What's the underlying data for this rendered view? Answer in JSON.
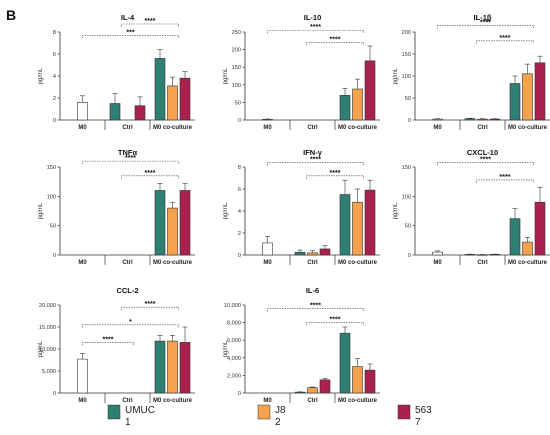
{
  "figure": {
    "letter": "B"
  },
  "colors": {
    "UMUC1": "#2e8073",
    "J82": "#f4a24d",
    "5637": "#a8224d",
    "bar_stroke": "#333333"
  },
  "legend": [
    {
      "line1": "UMUC",
      "line2": "1",
      "color": "#2e8073"
    },
    {
      "line1": "J8",
      "line2": "2",
      "color": "#f4a24d"
    },
    {
      "line1": "563",
      "line2": "7",
      "color": "#a8224d"
    }
  ],
  "chart_data": [
    {
      "type": "bar",
      "title": "IL-4",
      "ylabel": "pg/mL",
      "ylim": [
        0,
        8
      ],
      "yticks": [
        "0",
        "2",
        "4",
        "6",
        "8"
      ],
      "groups": [
        "M0",
        "Ctrl",
        "M0 co-culture"
      ],
      "bars": [
        {
          "group": 0,
          "series": "M0",
          "value": 1.6,
          "err": 0.6,
          "fill": "#ffffff"
        },
        {
          "group": 1,
          "series": "UMUC1",
          "value": 1.5,
          "err": 0.9
        },
        {
          "group": 1,
          "series": "5637",
          "value": 1.3,
          "err": 0.8
        },
        {
          "group": 2,
          "series": "UMUC1",
          "value": 5.6,
          "err": 0.8
        },
        {
          "group": 2,
          "series": "J82",
          "value": 3.1,
          "err": 0.8
        },
        {
          "group": 2,
          "series": "5637",
          "value": 3.8,
          "err": 0.6
        }
      ],
      "brackets": [
        {
          "from": 0,
          "to": 2,
          "y": 7.7,
          "label": "***"
        },
        {
          "from": 1,
          "to": 2,
          "y": 9.3,
          "label": "****"
        }
      ]
    },
    {
      "type": "bar",
      "title": "IL-10",
      "ylabel": "pg/mL",
      "ylim": [
        0,
        250
      ],
      "yticks": [
        "0",
        "50",
        "100",
        "150",
        "200",
        "250"
      ],
      "groups": [
        "M0",
        "Ctrl",
        "M0 co-culture"
      ],
      "bars": [
        {
          "group": 0,
          "series": "M0",
          "value": 2,
          "err": 1,
          "fill": "#ffffff"
        },
        {
          "group": 2,
          "series": "UMUC1",
          "value": 70,
          "err": 20
        },
        {
          "group": 2,
          "series": "J82",
          "value": 88,
          "err": 28
        },
        {
          "group": 2,
          "series": "5637",
          "value": 168,
          "err": 42
        }
      ],
      "brackets": [
        {
          "from": 0,
          "to": 2,
          "y": 255,
          "label": "****"
        },
        {
          "from": 1,
          "to": 2,
          "y": 220,
          "label": "****"
        }
      ]
    },
    {
      "type": "bar",
      "title": "IL-1β",
      "ylabel": "pg/mL",
      "ylim": [
        0,
        200
      ],
      "yticks": [
        "0",
        "50",
        "100",
        "150",
        "200"
      ],
      "groups": [
        "M0",
        "Ctrl",
        "M0 co-culture"
      ],
      "bars": [
        {
          "group": 0,
          "series": "M0",
          "value": 2,
          "err": 1,
          "fill": "#ffffff"
        },
        {
          "group": 1,
          "series": "UMUC1",
          "value": 3,
          "err": 1
        },
        {
          "group": 1,
          "series": "J82",
          "value": 2,
          "err": 1
        },
        {
          "group": 1,
          "series": "5637",
          "value": 2,
          "err": 1
        },
        {
          "group": 2,
          "series": "UMUC1",
          "value": 83,
          "err": 17
        },
        {
          "group": 2,
          "series": "J82",
          "value": 105,
          "err": 22
        },
        {
          "group": 2,
          "series": "5637",
          "value": 130,
          "err": 15
        }
      ],
      "brackets": [
        {
          "from": 0,
          "to": 2,
          "y": 215,
          "label": "****"
        },
        {
          "from": 1,
          "to": 2,
          "y": 180,
          "label": "****"
        }
      ]
    },
    {
      "type": "bar",
      "title": "TNFα",
      "ylabel": "pg/mL",
      "ylim": [
        0,
        150
      ],
      "yticks": [
        "0",
        "50",
        "100",
        "150"
      ],
      "groups": [
        "M0",
        "Ctrl",
        "M0 co-culture"
      ],
      "bars": [
        {
          "group": 2,
          "series": "UMUC1",
          "value": 110,
          "err": 12
        },
        {
          "group": 2,
          "series": "J82",
          "value": 80,
          "err": 10
        },
        {
          "group": 2,
          "series": "5637",
          "value": 110,
          "err": 12
        }
      ],
      "brackets": [
        {
          "from": 0,
          "to": 2,
          "y": 160,
          "label": "****"
        },
        {
          "from": 1,
          "to": 2,
          "y": 135,
          "label": "****"
        }
      ]
    },
    {
      "type": "bar",
      "title": "IFN-γ",
      "ylabel": "pg/mL",
      "ylim": [
        0,
        8
      ],
      "yticks": [
        "0",
        "2",
        "4",
        "6",
        "8"
      ],
      "groups": [
        "M0",
        "Ctrl",
        "M0 co-culture"
      ],
      "bars": [
        {
          "group": 0,
          "series": "M0",
          "value": 1.1,
          "err": 0.6,
          "fill": "#ffffff"
        },
        {
          "group": 1,
          "series": "UMUC1",
          "value": 0.25,
          "err": 0.2
        },
        {
          "group": 1,
          "series": "J82",
          "value": 0.2,
          "err": 0.2
        },
        {
          "group": 1,
          "series": "5637",
          "value": 0.55,
          "err": 0.3
        },
        {
          "group": 2,
          "series": "UMUC1",
          "value": 5.5,
          "err": 1.3
        },
        {
          "group": 2,
          "series": "J82",
          "value": 4.8,
          "err": 1.2
        },
        {
          "group": 2,
          "series": "5637",
          "value": 5.9,
          "err": 0.9
        }
      ],
      "brackets": [
        {
          "from": 0,
          "to": 2,
          "y": 8.4,
          "label": "****"
        },
        {
          "from": 1,
          "to": 2,
          "y": 7.2,
          "label": "****"
        }
      ]
    },
    {
      "type": "bar",
      "title": "CXCL-10",
      "ylabel": "pg/mL",
      "ylim": [
        0,
        150
      ],
      "yticks": [
        "0",
        "50",
        "100",
        "150"
      ],
      "groups": [
        "M0",
        "Ctrl",
        "M0 co-culture"
      ],
      "bars": [
        {
          "group": 0,
          "series": "M0",
          "value": 5,
          "err": 2,
          "fill": "#ffffff"
        },
        {
          "group": 1,
          "series": "UMUC1",
          "value": 1,
          "err": 0.5
        },
        {
          "group": 1,
          "series": "J82",
          "value": 0.5,
          "err": 0.3
        },
        {
          "group": 1,
          "series": "5637",
          "value": 1,
          "err": 0.5
        },
        {
          "group": 2,
          "series": "UMUC1",
          "value": 62,
          "err": 17
        },
        {
          "group": 2,
          "series": "J82",
          "value": 22,
          "err": 8
        },
        {
          "group": 2,
          "series": "5637",
          "value": 90,
          "err": 25
        }
      ],
      "brackets": [
        {
          "from": 0,
          "to": 2,
          "y": 158,
          "label": "****"
        },
        {
          "from": 1,
          "to": 2,
          "y": 128,
          "label": "****"
        }
      ]
    },
    {
      "type": "bar",
      "title": "CCL-2",
      "ylabel": "pg/mL",
      "ylim": [
        0,
        20000
      ],
      "yticks": [
        "0",
        "5,000",
        "10,000",
        "15,000",
        "20,000"
      ],
      "groups": [
        "M0",
        "Ctrl",
        "M0 co-culture"
      ],
      "bars": [
        {
          "group": 0,
          "series": "M0",
          "value": 7700,
          "err": 1300,
          "fill": "#ffffff"
        },
        {
          "group": 2,
          "series": "UMUC1",
          "value": 11800,
          "err": 1300
        },
        {
          "group": 2,
          "series": "J82",
          "value": 11800,
          "err": 1300
        },
        {
          "group": 2,
          "series": "5637",
          "value": 11500,
          "err": 3500
        }
      ],
      "brackets": [
        {
          "from": 0,
          "to": 2,
          "y": 15500,
          "label": "*"
        },
        {
          "from": 1,
          "to": 2,
          "y": 19500,
          "label": "****"
        },
        {
          "from": 0,
          "to": 1,
          "y": 11500,
          "label": "****"
        }
      ]
    },
    {
      "type": "bar",
      "title": "IL-6",
      "ylabel": "pg/mL",
      "ylim": [
        0,
        10000
      ],
      "yticks": [
        "0",
        "2,000",
        "4,000",
        "6,000",
        "8,000",
        "10,000"
      ],
      "groups": [
        "M0",
        "Ctrl",
        "M0 co-culture"
      ],
      "bars": [
        {
          "group": 1,
          "series": "UMUC1",
          "value": 100,
          "err": 30
        },
        {
          "group": 1,
          "series": "J82",
          "value": 600,
          "err": 80
        },
        {
          "group": 1,
          "series": "5637",
          "value": 1500,
          "err": 150
        },
        {
          "group": 2,
          "series": "UMUC1",
          "value": 6800,
          "err": 700
        },
        {
          "group": 2,
          "series": "J82",
          "value": 3000,
          "err": 900
        },
        {
          "group": 2,
          "series": "5637",
          "value": 2600,
          "err": 700
        }
      ],
      "brackets": [
        {
          "from": 0,
          "to": 2,
          "y": 9600,
          "label": "****"
        },
        {
          "from": 1,
          "to": 2,
          "y": 8000,
          "label": "****"
        }
      ]
    }
  ]
}
